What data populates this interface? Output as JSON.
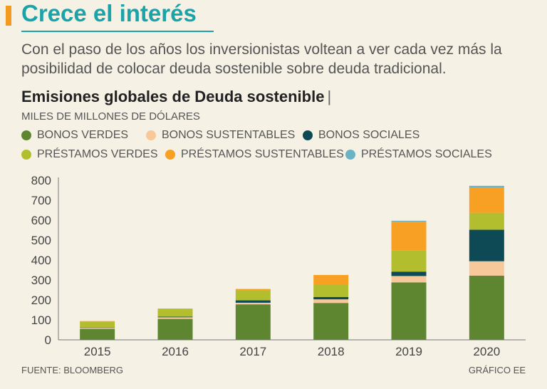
{
  "title": "Crece el interés",
  "subtitle": "Con el paso de los años los inversionistas voltean a ver cada vez más la posibilidad de colocar deuda sostenible sobre deuda tradicional.",
  "footer": {
    "source": "FUENTE: BLOOMBERG",
    "credit": "GRÁFICO EE"
  },
  "colors": {
    "accent": "#f39a1f",
    "title": "#1aa3a8",
    "background": "#f6f1e5"
  },
  "chart_data": {
    "type": "bar",
    "stacked": true,
    "title": "Emisiones globales de Deuda sostenible",
    "title_suffix": "|",
    "ylabel": "MILES DE MILLONES DE DÓLARES",
    "xlabel": "",
    "ylim": [
      0,
      800
    ],
    "yticks": [
      0,
      100,
      200,
      300,
      400,
      500,
      600,
      700,
      800
    ],
    "categories": [
      "2015",
      "2016",
      "2017",
      "2018",
      "2019",
      "2020"
    ],
    "legend_order": [
      "BONOS VERDES",
      "BONOS SUSTENTABLES",
      "BONOS SOCIALES",
      "PRÉSTAMOS VERDES",
      "PRÉSTAMOS SUSTENTABLES",
      "PRÉSTAMOS SOCIALES"
    ],
    "series": [
      {
        "name": "BONOS VERDES",
        "color": "#5e8530",
        "values": [
          55,
          105,
          178,
          185,
          288,
          322
        ]
      },
      {
        "name": "BONOS SUSTENTABLES",
        "color": "#f7c89a",
        "values": [
          5,
          8,
          8,
          18,
          32,
          72
        ]
      },
      {
        "name": "BONOS SOCIALES",
        "color": "#0d4a55",
        "values": [
          2,
          3,
          12,
          12,
          22,
          158
        ]
      },
      {
        "name": "PRÉSTAMOS VERDES",
        "color": "#b2be2e",
        "values": [
          30,
          38,
          50,
          60,
          105,
          85
        ]
      },
      {
        "name": "PRÉSTAMOS SUSTENTABLES",
        "color": "#f7a024",
        "values": [
          2,
          3,
          7,
          50,
          145,
          125
        ]
      },
      {
        "name": "PRÉSTAMOS SOCIALES",
        "color": "#6ab3c7",
        "values": [
          0,
          0,
          0,
          0,
          5,
          10
        ]
      }
    ]
  }
}
